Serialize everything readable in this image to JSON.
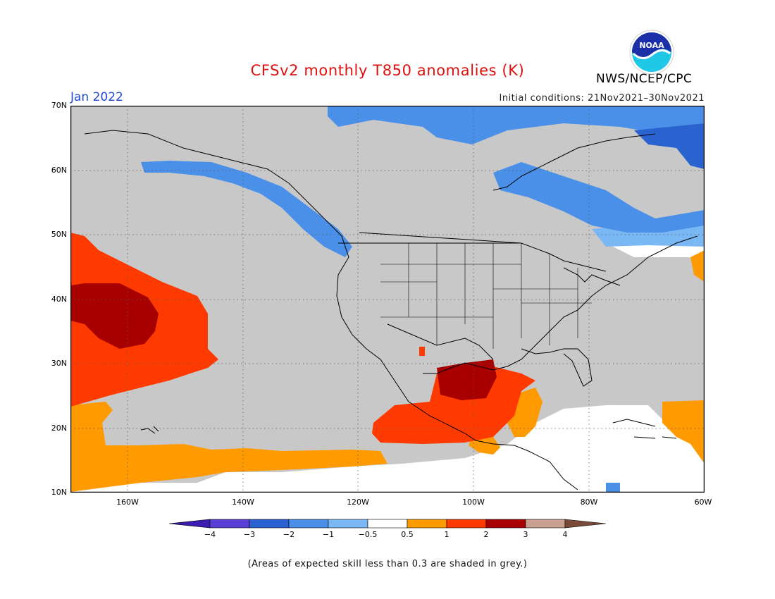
{
  "title": "CFSv2 monthly T850 anomalies (K)",
  "organization": "NWS/NCEP/CPC",
  "logo_text": "NOAA",
  "forecast_period": "Jan 2022",
  "initial_conditions": "Initial conditions: 21Nov2021–30Nov2021",
  "lat_labels": [
    "70N",
    "60N",
    "50N",
    "40N",
    "30N",
    "20N",
    "10N"
  ],
  "lon_labels": [
    "160W",
    "140W",
    "120W",
    "100W",
    "80W",
    "60W"
  ],
  "colorbar": {
    "labels": [
      "−4",
      "−3",
      "−2",
      "−1",
      "−0.5",
      "0.5",
      "1",
      "2",
      "3",
      "4"
    ],
    "colors": [
      "#3c1bb0",
      "#5a3fd6",
      "#2a63cf",
      "#4a90e8",
      "#7ab8f5",
      "#ffffff",
      "#ff9a00",
      "#ff3a00",
      "#a80000",
      "#c9a090",
      "#7a4a38"
    ]
  },
  "skill_note": "(Areas of expected skill less than 0.3 are shaded in grey.)"
}
